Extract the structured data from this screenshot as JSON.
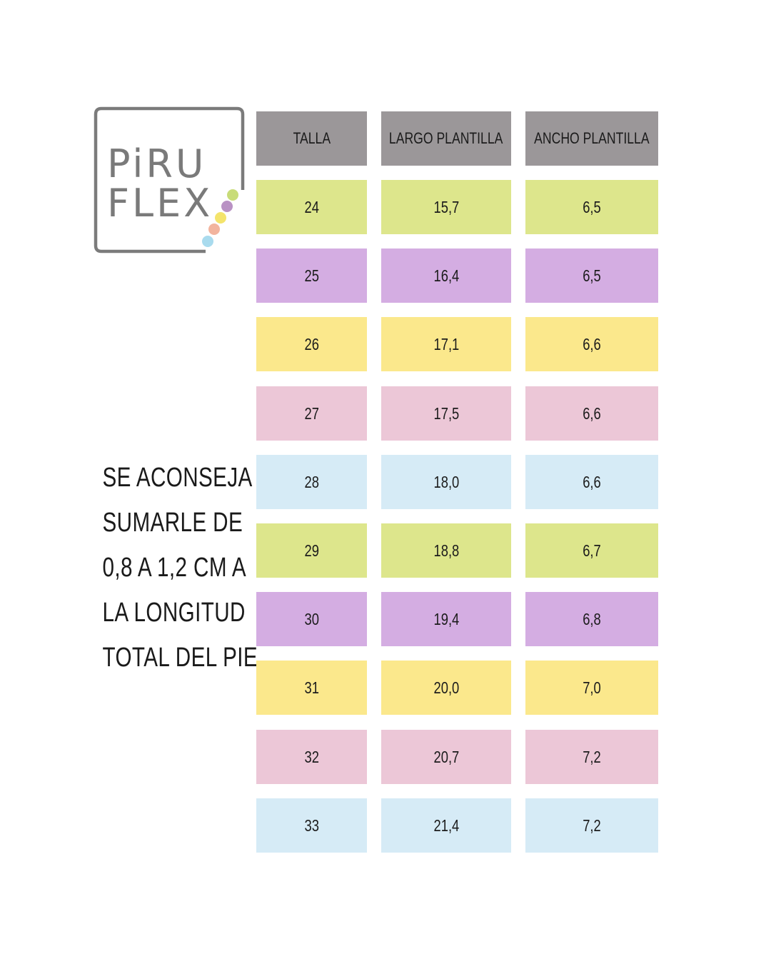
{
  "brand": {
    "logo_line1": "PiRU",
    "logo_line2": "FLEX"
  },
  "advice_lines": [
    "SE ACONSEJA",
    "SUMARLE DE",
    "0,8 A 1,2 CM A",
    "LA LONGITUD",
    "TOTAL DEL PIE."
  ],
  "table": {
    "headers": [
      "TALLA",
      "LARGO PLANTILLA",
      "ANCHO PLANTILLA"
    ],
    "header_color": "#9b9799",
    "rows": [
      {
        "talla": "24",
        "largo": "15,7",
        "ancho": "6,5",
        "color": "#dde68c"
      },
      {
        "talla": "25",
        "largo": "16,4",
        "ancho": "6,5",
        "color": "#d4ade2"
      },
      {
        "talla": "26",
        "largo": "17,1",
        "ancho": "6,6",
        "color": "#fbe88c"
      },
      {
        "talla": "27",
        "largo": "17,5",
        "ancho": "6,6",
        "color": "#ecc7d7"
      },
      {
        "talla": "28",
        "largo": "18,0",
        "ancho": "6,6",
        "color": "#d6ebf6"
      },
      {
        "talla": "29",
        "largo": "18,8",
        "ancho": "6,7",
        "color": "#dde68c"
      },
      {
        "talla": "30",
        "largo": "19,4",
        "ancho": "6,8",
        "color": "#d4ade2"
      },
      {
        "talla": "31",
        "largo": "20,0",
        "ancho": "7,0",
        "color": "#fbe88c"
      },
      {
        "talla": "32",
        "largo": "20,7",
        "ancho": "7,2",
        "color": "#ecc7d7"
      },
      {
        "talla": "33",
        "largo": "21,4",
        "ancho": "7,2",
        "color": "#d6ebf6"
      }
    ]
  },
  "logo_dot_colors": [
    "#c8dc78",
    "#b992c4",
    "#f4e46c",
    "#f2b49e",
    "#a9dbee"
  ]
}
